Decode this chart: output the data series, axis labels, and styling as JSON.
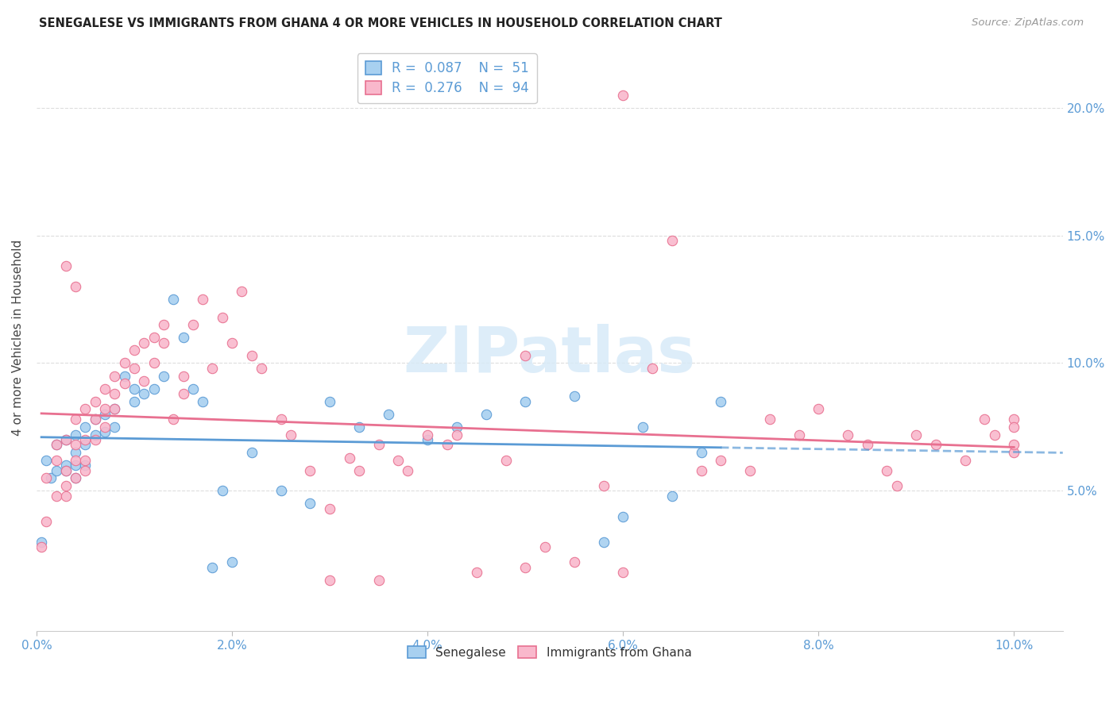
{
  "title": "SENEGALESE VS IMMIGRANTS FROM GHANA 4 OR MORE VEHICLES IN HOUSEHOLD CORRELATION CHART",
  "source": "Source: ZipAtlas.com",
  "ylabel": "4 or more Vehicles in Household",
  "yticks": [
    "5.0%",
    "10.0%",
    "15.0%",
    "20.0%"
  ],
  "ytick_values": [
    0.05,
    0.1,
    0.15,
    0.2
  ],
  "xtick_values": [
    0.0,
    0.02,
    0.04,
    0.06,
    0.08,
    0.1
  ],
  "xtick_labels": [
    "0.0%",
    "2.0%",
    "4.0%",
    "6.0%",
    "8.0%",
    "10.0%"
  ],
  "xlim": [
    0.0,
    0.105
  ],
  "ylim": [
    -0.005,
    0.225
  ],
  "R1": 0.087,
  "N1": 51,
  "R2": 0.276,
  "N2": 94,
  "color_blue": "#A8D0F0",
  "color_pink": "#F9B8CC",
  "line_blue": "#5B9BD5",
  "line_pink": "#E87090",
  "watermark": "ZIPatlas",
  "blue_scatter_x": [
    0.0005,
    0.001,
    0.0015,
    0.002,
    0.002,
    0.003,
    0.003,
    0.003,
    0.004,
    0.004,
    0.004,
    0.004,
    0.005,
    0.005,
    0.005,
    0.006,
    0.006,
    0.007,
    0.007,
    0.008,
    0.008,
    0.009,
    0.01,
    0.01,
    0.011,
    0.012,
    0.013,
    0.014,
    0.015,
    0.016,
    0.017,
    0.018,
    0.019,
    0.02,
    0.022,
    0.025,
    0.028,
    0.03,
    0.033,
    0.036,
    0.04,
    0.043,
    0.046,
    0.05,
    0.055,
    0.058,
    0.06,
    0.062,
    0.065,
    0.068,
    0.07
  ],
  "blue_scatter_y": [
    0.03,
    0.062,
    0.055,
    0.068,
    0.058,
    0.07,
    0.06,
    0.058,
    0.072,
    0.065,
    0.06,
    0.055,
    0.075,
    0.068,
    0.06,
    0.078,
    0.072,
    0.08,
    0.073,
    0.082,
    0.075,
    0.095,
    0.09,
    0.085,
    0.088,
    0.09,
    0.095,
    0.125,
    0.11,
    0.09,
    0.085,
    0.02,
    0.05,
    0.022,
    0.065,
    0.05,
    0.045,
    0.085,
    0.075,
    0.08,
    0.07,
    0.075,
    0.08,
    0.085,
    0.087,
    0.03,
    0.04,
    0.075,
    0.048,
    0.065,
    0.085
  ],
  "pink_scatter_x": [
    0.0005,
    0.001,
    0.001,
    0.002,
    0.002,
    0.002,
    0.003,
    0.003,
    0.003,
    0.003,
    0.003,
    0.004,
    0.004,
    0.004,
    0.004,
    0.004,
    0.005,
    0.005,
    0.005,
    0.005,
    0.006,
    0.006,
    0.006,
    0.007,
    0.007,
    0.007,
    0.008,
    0.008,
    0.008,
    0.009,
    0.009,
    0.01,
    0.01,
    0.011,
    0.011,
    0.012,
    0.012,
    0.013,
    0.013,
    0.014,
    0.015,
    0.015,
    0.016,
    0.017,
    0.018,
    0.019,
    0.02,
    0.021,
    0.022,
    0.023,
    0.025,
    0.026,
    0.028,
    0.03,
    0.032,
    0.033,
    0.035,
    0.037,
    0.038,
    0.04,
    0.042,
    0.043,
    0.045,
    0.048,
    0.05,
    0.052,
    0.055,
    0.058,
    0.06,
    0.063,
    0.065,
    0.068,
    0.07,
    0.073,
    0.075,
    0.078,
    0.08,
    0.083,
    0.085,
    0.087,
    0.088,
    0.09,
    0.092,
    0.095,
    0.097,
    0.098,
    0.1,
    0.1,
    0.1,
    0.1,
    0.06,
    0.03,
    0.035,
    0.05
  ],
  "pink_scatter_y": [
    0.028,
    0.038,
    0.055,
    0.048,
    0.062,
    0.068,
    0.048,
    0.07,
    0.058,
    0.052,
    0.138,
    0.078,
    0.068,
    0.062,
    0.055,
    0.13,
    0.082,
    0.07,
    0.062,
    0.058,
    0.085,
    0.078,
    0.07,
    0.09,
    0.082,
    0.075,
    0.095,
    0.088,
    0.082,
    0.1,
    0.092,
    0.105,
    0.098,
    0.108,
    0.093,
    0.11,
    0.1,
    0.115,
    0.108,
    0.078,
    0.095,
    0.088,
    0.115,
    0.125,
    0.098,
    0.118,
    0.108,
    0.128,
    0.103,
    0.098,
    0.078,
    0.072,
    0.058,
    0.043,
    0.063,
    0.058,
    0.068,
    0.062,
    0.058,
    0.072,
    0.068,
    0.072,
    0.018,
    0.062,
    0.103,
    0.028,
    0.022,
    0.052,
    0.205,
    0.098,
    0.148,
    0.058,
    0.062,
    0.058,
    0.078,
    0.072,
    0.082,
    0.072,
    0.068,
    0.058,
    0.052,
    0.072,
    0.068,
    0.062,
    0.078,
    0.072,
    0.065,
    0.078,
    0.075,
    0.068,
    0.018,
    0.015,
    0.015,
    0.02
  ]
}
